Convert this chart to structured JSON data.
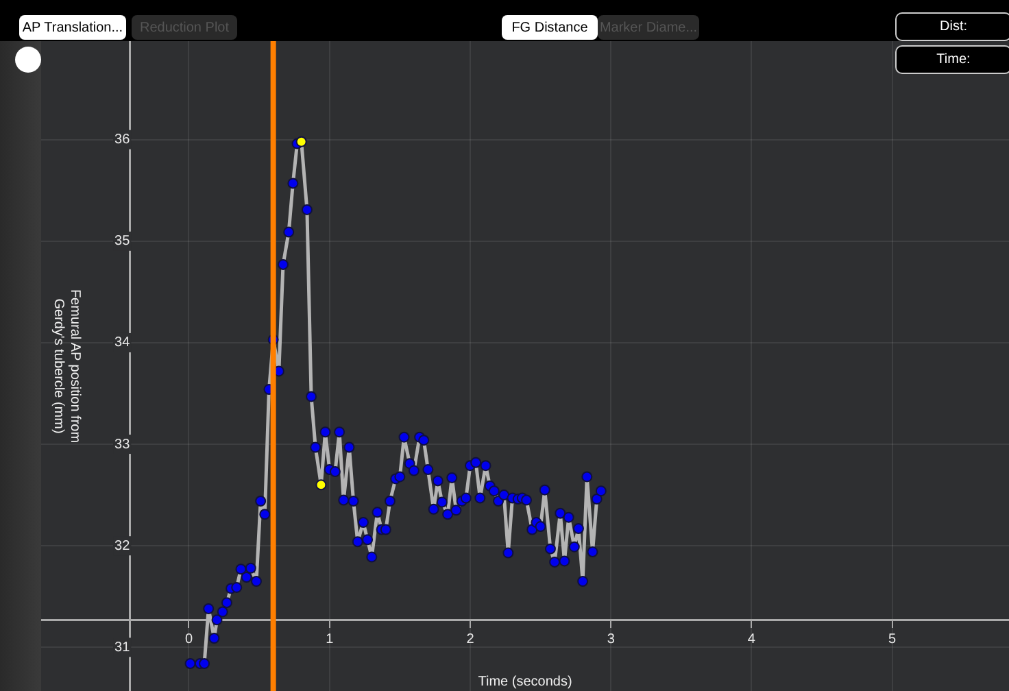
{
  "chart_data": {
    "type": "line",
    "xlabel": "Time (seconds)",
    "ylabel": "Femural AP position from\nGerdy's tubercle (mm)",
    "annotations": [
      "AP Translation...",
      "Reduction Plot",
      "FG Distance",
      "Marker Diame...",
      "Dist:",
      "Time:"
    ],
    "xlim": [
      -1.05,
      5.83
    ],
    "ylim": [
      30.57,
      36.97
    ],
    "xticks": [
      0,
      1,
      2,
      3,
      4,
      5
    ],
    "yticks": [
      31,
      32,
      33,
      34,
      35,
      36
    ],
    "grid": true,
    "legend": false,
    "marker": "circle",
    "line_style": "solid",
    "ref_lines": [
      {
        "axis": "x",
        "value": 0.6,
        "color": "#ff7f00"
      }
    ],
    "series": [
      {
        "color": "#b4b4b4",
        "x": [
          0.01,
          0.08,
          0.11,
          0.14,
          0.18,
          0.2,
          0.24,
          0.27,
          0.3,
          0.34,
          0.37,
          0.41,
          0.44,
          0.48,
          0.51,
          0.54,
          0.57,
          0.6,
          0.64,
          0.67,
          0.71,
          0.74,
          0.77,
          0.8,
          0.84,
          0.87,
          0.9,
          0.94,
          0.97,
          1.0,
          1.04,
          1.07,
          1.1,
          1.14,
          1.17,
          1.2,
          1.24,
          1.27,
          1.3,
          1.34,
          1.37,
          1.4,
          1.43,
          1.47,
          1.5,
          1.53,
          1.57,
          1.6,
          1.64,
          1.67,
          1.7,
          1.74,
          1.77,
          1.8,
          1.84,
          1.87,
          1.9,
          1.94,
          1.97,
          2.0,
          2.04,
          2.07,
          2.11,
          2.14,
          2.17,
          2.2,
          2.24,
          2.27,
          2.3,
          2.34,
          2.37,
          2.4,
          2.44,
          2.47,
          2.5,
          2.53,
          2.57,
          2.6,
          2.64,
          2.67,
          2.7,
          2.74,
          2.77,
          2.8,
          2.83,
          2.87,
          2.9,
          2.93
        ],
        "values": [
          30.84,
          30.84,
          30.84,
          31.38,
          31.09,
          31.27,
          31.35,
          31.44,
          31.58,
          31.59,
          31.77,
          31.69,
          31.78,
          31.65,
          32.44,
          32.31,
          33.54,
          34.03,
          33.72,
          34.77,
          35.09,
          35.57,
          35.96,
          35.98,
          35.31,
          33.47,
          32.97,
          32.6,
          33.12,
          32.75,
          32.73,
          33.12,
          32.45,
          32.97,
          32.44,
          32.04,
          32.23,
          32.06,
          31.89,
          32.33,
          32.16,
          32.16,
          32.44,
          32.66,
          32.68,
          33.07,
          32.81,
          32.74,
          33.07,
          33.04,
          32.75,
          32.36,
          32.64,
          32.43,
          32.31,
          32.67,
          32.35,
          32.44,
          32.47,
          32.79,
          32.82,
          32.47,
          32.79,
          32.59,
          32.54,
          32.44,
          32.5,
          31.93,
          32.47,
          32.46,
          32.47,
          32.45,
          32.16,
          32.23,
          32.19,
          32.55,
          31.97,
          31.84,
          32.32,
          31.85,
          32.28,
          31.99,
          32.17,
          31.65,
          32.68,
          31.94,
          32.46,
          32.54
        ],
        "colors": [
          "#0000ee",
          "#0000ee",
          "#0000ee",
          "#0000ee",
          "#0000ee",
          "#0000ee",
          "#0000ee",
          "#0000ee",
          "#0000ee",
          "#0000ee",
          "#0000ee",
          "#0000ee",
          "#0000ee",
          "#0000ee",
          "#0000ee",
          "#0000ee",
          "#0000ee",
          "#0000ee",
          "#0000ee",
          "#0000ee",
          "#0000ee",
          "#0000ee",
          "#0000ee",
          "#ffff00",
          "#0000ee",
          "#0000ee",
          "#0000ee",
          "#ffff00",
          "#0000ee",
          "#0000ee",
          "#0000ee",
          "#0000ee",
          "#0000ee",
          "#0000ee",
          "#0000ee",
          "#0000ee",
          "#0000ee",
          "#0000ee",
          "#0000ee",
          "#0000ee",
          "#0000ee",
          "#0000ee",
          "#0000ee",
          "#0000ee",
          "#0000ee",
          "#0000ee",
          "#0000ee",
          "#0000ee",
          "#0000ee",
          "#0000ee",
          "#0000ee",
          "#0000ee",
          "#0000ee",
          "#0000ee",
          "#0000ee",
          "#0000ee",
          "#0000ee",
          "#0000ee",
          "#0000ee",
          "#0000ee",
          "#0000ee",
          "#0000ee",
          "#0000ee",
          "#0000ee",
          "#0000ee",
          "#0000ee",
          "#0000ee",
          "#0000ee",
          "#0000ee",
          "#0000ee",
          "#0000ee",
          "#0000ee",
          "#0000ee",
          "#0000ee",
          "#0000ee",
          "#0000ee",
          "#0000ee",
          "#0000ee",
          "#0000ee",
          "#0000ee",
          "#0000ee",
          "#0000ee",
          "#0000ee",
          "#0000ee",
          "#0000ee",
          "#0000ee",
          "#0000ee",
          "#0000ee"
        ]
      }
    ]
  }
}
